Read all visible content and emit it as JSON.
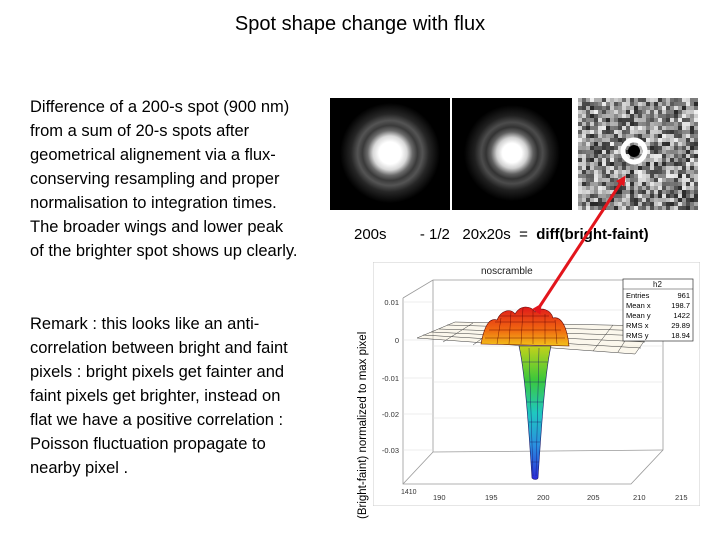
{
  "title": "Spot shape change with flux",
  "description": "Difference of a 200-s spot (900 nm) from a sum of 20-s spots after geometrical alignement via a flux-conserving resampling and proper normalisation to integration times. The broader wings and lower peak of the brighter spot shows up clearly.",
  "remark": "Remark : this looks like an anti-correlation between bright and faint pixels : bright pixels get fainter and faint pixels get brighter, instead on flat we have a positive correlation : Poisson fluctuation propagate to nearby pixel .",
  "caption": {
    "part1": "200s",
    "part2": "- 1/2   20x20s  =  ",
    "part3": "diff(bright-faint)"
  },
  "y_axis_label": "(Bright-faint) normalized to max pixel",
  "plot": {
    "title": "noscramble",
    "stats_name": "h2",
    "stats": [
      {
        "label": "Entries",
        "value": "961"
      },
      {
        "label": "Mean x",
        "value": "198.7"
      },
      {
        "label": "Mean y",
        "value": "1422"
      },
      {
        "label": "RMS x",
        "value": "29.89"
      },
      {
        "label": "RMS y",
        "value": "18.94"
      }
    ],
    "z_ticks": [
      "0.01",
      "0",
      "-0.01",
      "-0.02",
      "-0.03"
    ],
    "x_ticks": [
      "190",
      "195",
      "200",
      "205",
      "210",
      "215"
    ],
    "y_ticks_label": "1410"
  },
  "colors": {
    "arrow": "#e3151c",
    "surface_peak": "#d31a1a",
    "surface_dip": "#2b2bd8"
  }
}
